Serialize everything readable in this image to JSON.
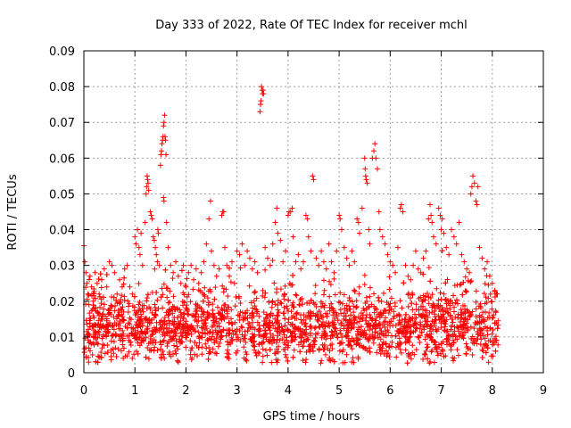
{
  "chart_data": {
    "type": "scatter",
    "title": "Day 333 of 2022, Rate Of TEC Index for receiver mchl",
    "xlabel": "GPS time / hours",
    "ylabel": "ROTI / TECUs",
    "xlim": [
      0,
      9
    ],
    "ylim": [
      0,
      0.09
    ],
    "xticks": [
      "0",
      "1",
      "2",
      "3",
      "4",
      "5",
      "6",
      "7",
      "8",
      "9"
    ],
    "yticks": [
      "0",
      "0.01",
      "0.02",
      "0.03",
      "0.04",
      "0.05",
      "0.06",
      "0.07",
      "0.08",
      "0.09"
    ],
    "grid": true,
    "marker": "plus",
    "color": "#ff0000",
    "series": [
      {
        "points": [
          [
            0.0,
            0.0355
          ],
          [
            0.02,
            0.031
          ],
          [
            0.04,
            0.028
          ],
          [
            0.06,
            0.025
          ],
          [
            0.08,
            0.022
          ],
          [
            0.1,
            0.019
          ],
          [
            0.12,
            0.027
          ],
          [
            0.15,
            0.024
          ],
          [
            0.18,
            0.02
          ],
          [
            0.22,
            0.028
          ],
          [
            0.26,
            0.025
          ],
          [
            0.3,
            0.022
          ],
          [
            0.35,
            0.026
          ],
          [
            0.4,
            0.029
          ],
          [
            0.45,
            0.024
          ],
          [
            0.5,
            0.031
          ],
          [
            0.55,
            0.03
          ],
          [
            0.6,
            0.028
          ],
          [
            0.65,
            0.022
          ],
          [
            0.7,
            0.026
          ],
          [
            0.75,
            0.024
          ],
          [
            0.8,
            0.029
          ],
          [
            0.85,
            0.03
          ],
          [
            0.9,
            0.024
          ],
          [
            0.95,
            0.022
          ],
          [
            1.0,
            0.038
          ],
          [
            1.02,
            0.036
          ],
          [
            1.05,
            0.04
          ],
          [
            1.08,
            0.035
          ],
          [
            1.1,
            0.033
          ],
          [
            1.12,
            0.039
          ],
          [
            1.15,
            0.03
          ],
          [
            1.2,
            0.042
          ],
          [
            1.22,
            0.05
          ],
          [
            1.23,
            0.052
          ],
          [
            1.24,
            0.055
          ],
          [
            1.25,
            0.054
          ],
          [
            1.26,
            0.053
          ],
          [
            1.27,
            0.051
          ],
          [
            1.3,
            0.045
          ],
          [
            1.32,
            0.044
          ],
          [
            1.34,
            0.043
          ],
          [
            1.36,
            0.038
          ],
          [
            1.38,
            0.037
          ],
          [
            1.4,
            0.035
          ],
          [
            1.42,
            0.033
          ],
          [
            1.44,
            0.031
          ],
          [
            1.45,
            0.04
          ],
          [
            1.46,
            0.039
          ],
          [
            1.48,
            0.03
          ],
          [
            1.5,
            0.058
          ],
          [
            1.51,
            0.061
          ],
          [
            1.52,
            0.062
          ],
          [
            1.53,
            0.064
          ],
          [
            1.54,
            0.065
          ],
          [
            1.55,
            0.066
          ],
          [
            1.56,
            0.069
          ],
          [
            1.57,
            0.07
          ],
          [
            1.58,
            0.072
          ],
          [
            1.59,
            0.066
          ],
          [
            1.6,
            0.065
          ],
          [
            1.61,
            0.061
          ],
          [
            1.56,
            0.049
          ],
          [
            1.57,
            0.048
          ],
          [
            1.62,
            0.042
          ],
          [
            1.65,
            0.035
          ],
          [
            1.7,
            0.03
          ],
          [
            1.75,
            0.028
          ],
          [
            1.8,
            0.031
          ],
          [
            1.85,
            0.027
          ],
          [
            1.9,
            0.025
          ],
          [
            1.95,
            0.03
          ],
          [
            2.0,
            0.024
          ],
          [
            2.05,
            0.028
          ],
          [
            2.1,
            0.03
          ],
          [
            2.15,
            0.026
          ],
          [
            2.2,
            0.029
          ],
          [
            2.25,
            0.025
          ],
          [
            2.3,
            0.028
          ],
          [
            2.35,
            0.031
          ],
          [
            2.4,
            0.036
          ],
          [
            2.45,
            0.043
          ],
          [
            2.48,
            0.048
          ],
          [
            2.5,
            0.034
          ],
          [
            2.55,
            0.03
          ],
          [
            2.6,
            0.027
          ],
          [
            2.65,
            0.029
          ],
          [
            2.7,
            0.044
          ],
          [
            2.72,
            0.045
          ],
          [
            2.74,
            0.045
          ],
          [
            2.76,
            0.035
          ],
          [
            2.8,
            0.03
          ],
          [
            2.85,
            0.027
          ],
          [
            2.9,
            0.031
          ],
          [
            2.95,
            0.025
          ],
          [
            3.0,
            0.034
          ],
          [
            3.05,
            0.033
          ],
          [
            3.1,
            0.036
          ],
          [
            3.15,
            0.03
          ],
          [
            3.2,
            0.034
          ],
          [
            3.25,
            0.032
          ],
          [
            3.3,
            0.029
          ],
          [
            3.35,
            0.031
          ],
          [
            3.4,
            0.028
          ],
          [
            3.45,
            0.073
          ],
          [
            3.46,
            0.075
          ],
          [
            3.47,
            0.076
          ],
          [
            3.48,
            0.08
          ],
          [
            3.49,
            0.079
          ],
          [
            3.5,
            0.078
          ],
          [
            3.51,
            0.079
          ],
          [
            3.52,
            0.078
          ],
          [
            3.55,
            0.035
          ],
          [
            3.6,
            0.032
          ],
          [
            3.65,
            0.03
          ],
          [
            3.7,
            0.036
          ],
          [
            3.75,
            0.042
          ],
          [
            3.78,
            0.046
          ],
          [
            3.8,
            0.039
          ],
          [
            3.85,
            0.037
          ],
          [
            3.9,
            0.031
          ],
          [
            3.95,
            0.034
          ],
          [
            4.0,
            0.044
          ],
          [
            4.02,
            0.045
          ],
          [
            4.05,
            0.045
          ],
          [
            4.08,
            0.046
          ],
          [
            4.1,
            0.038
          ],
          [
            4.15,
            0.031
          ],
          [
            4.2,
            0.033
          ],
          [
            4.25,
            0.029
          ],
          [
            4.3,
            0.031
          ],
          [
            4.35,
            0.044
          ],
          [
            4.38,
            0.043
          ],
          [
            4.4,
            0.038
          ],
          [
            4.45,
            0.034
          ],
          [
            4.48,
            0.055
          ],
          [
            4.5,
            0.054
          ],
          [
            4.55,
            0.032
          ],
          [
            4.6,
            0.03
          ],
          [
            4.65,
            0.034
          ],
          [
            4.7,
            0.031
          ],
          [
            4.75,
            0.029
          ],
          [
            4.8,
            0.036
          ],
          [
            4.85,
            0.031
          ],
          [
            4.9,
            0.028
          ],
          [
            4.95,
            0.034
          ],
          [
            5.0,
            0.044
          ],
          [
            5.02,
            0.043
          ],
          [
            5.05,
            0.04
          ],
          [
            5.1,
            0.035
          ],
          [
            5.15,
            0.032
          ],
          [
            5.2,
            0.03
          ],
          [
            5.25,
            0.034
          ],
          [
            5.3,
            0.031
          ],
          [
            5.35,
            0.043
          ],
          [
            5.38,
            0.042
          ],
          [
            5.4,
            0.039
          ],
          [
            5.45,
            0.046
          ],
          [
            5.5,
            0.06
          ],
          [
            5.51,
            0.057
          ],
          [
            5.52,
            0.055
          ],
          [
            5.53,
            0.054
          ],
          [
            5.55,
            0.053
          ],
          [
            5.58,
            0.04
          ],
          [
            5.6,
            0.036
          ],
          [
            5.65,
            0.06
          ],
          [
            5.68,
            0.062
          ],
          [
            5.7,
            0.064
          ],
          [
            5.72,
            0.06
          ],
          [
            5.75,
            0.057
          ],
          [
            5.78,
            0.045
          ],
          [
            5.8,
            0.04
          ],
          [
            5.85,
            0.038
          ],
          [
            5.9,
            0.036
          ],
          [
            5.95,
            0.033
          ],
          [
            6.0,
            0.031
          ],
          [
            6.05,
            0.03
          ],
          [
            6.1,
            0.028
          ],
          [
            6.15,
            0.035
          ],
          [
            6.2,
            0.046
          ],
          [
            6.22,
            0.047
          ],
          [
            6.25,
            0.045
          ],
          [
            6.3,
            0.03
          ],
          [
            6.35,
            0.027
          ],
          [
            6.4,
            0.026
          ],
          [
            6.45,
            0.03
          ],
          [
            6.5,
            0.034
          ],
          [
            6.55,
            0.029
          ],
          [
            6.6,
            0.028
          ],
          [
            6.65,
            0.032
          ],
          [
            6.7,
            0.034
          ],
          [
            6.75,
            0.043
          ],
          [
            6.78,
            0.047
          ],
          [
            6.8,
            0.044
          ],
          [
            6.82,
            0.042
          ],
          [
            6.85,
            0.038
          ],
          [
            6.9,
            0.036
          ],
          [
            6.95,
            0.046
          ],
          [
            6.98,
            0.044
          ],
          [
            7.0,
            0.04
          ],
          [
            7.02,
            0.043
          ],
          [
            7.05,
            0.039
          ],
          [
            7.1,
            0.035
          ],
          [
            7.15,
            0.033
          ],
          [
            7.2,
            0.04
          ],
          [
            7.25,
            0.038
          ],
          [
            7.3,
            0.036
          ],
          [
            7.35,
            0.042
          ],
          [
            7.4,
            0.033
          ],
          [
            7.45,
            0.031
          ],
          [
            7.5,
            0.029
          ],
          [
            7.55,
            0.028
          ],
          [
            7.58,
            0.05
          ],
          [
            7.6,
            0.052
          ],
          [
            7.62,
            0.055
          ],
          [
            7.65,
            0.053
          ],
          [
            7.68,
            0.048
          ],
          [
            7.7,
            0.047
          ],
          [
            7.72,
            0.052
          ],
          [
            7.75,
            0.035
          ],
          [
            7.8,
            0.032
          ],
          [
            7.85,
            0.029
          ],
          [
            7.9,
            0.031
          ],
          [
            7.95,
            0.027
          ],
          [
            8.0,
            0.025
          ],
          [
            8.05,
            0.023
          ],
          [
            8.1,
            0.022
          ]
        ],
        "dense_band": {
          "x_range": [
            0,
            8.12
          ],
          "y_center": 0.0125,
          "y_spread": 0.011,
          "count": 2400,
          "floor": 0.0025
        }
      }
    ]
  }
}
